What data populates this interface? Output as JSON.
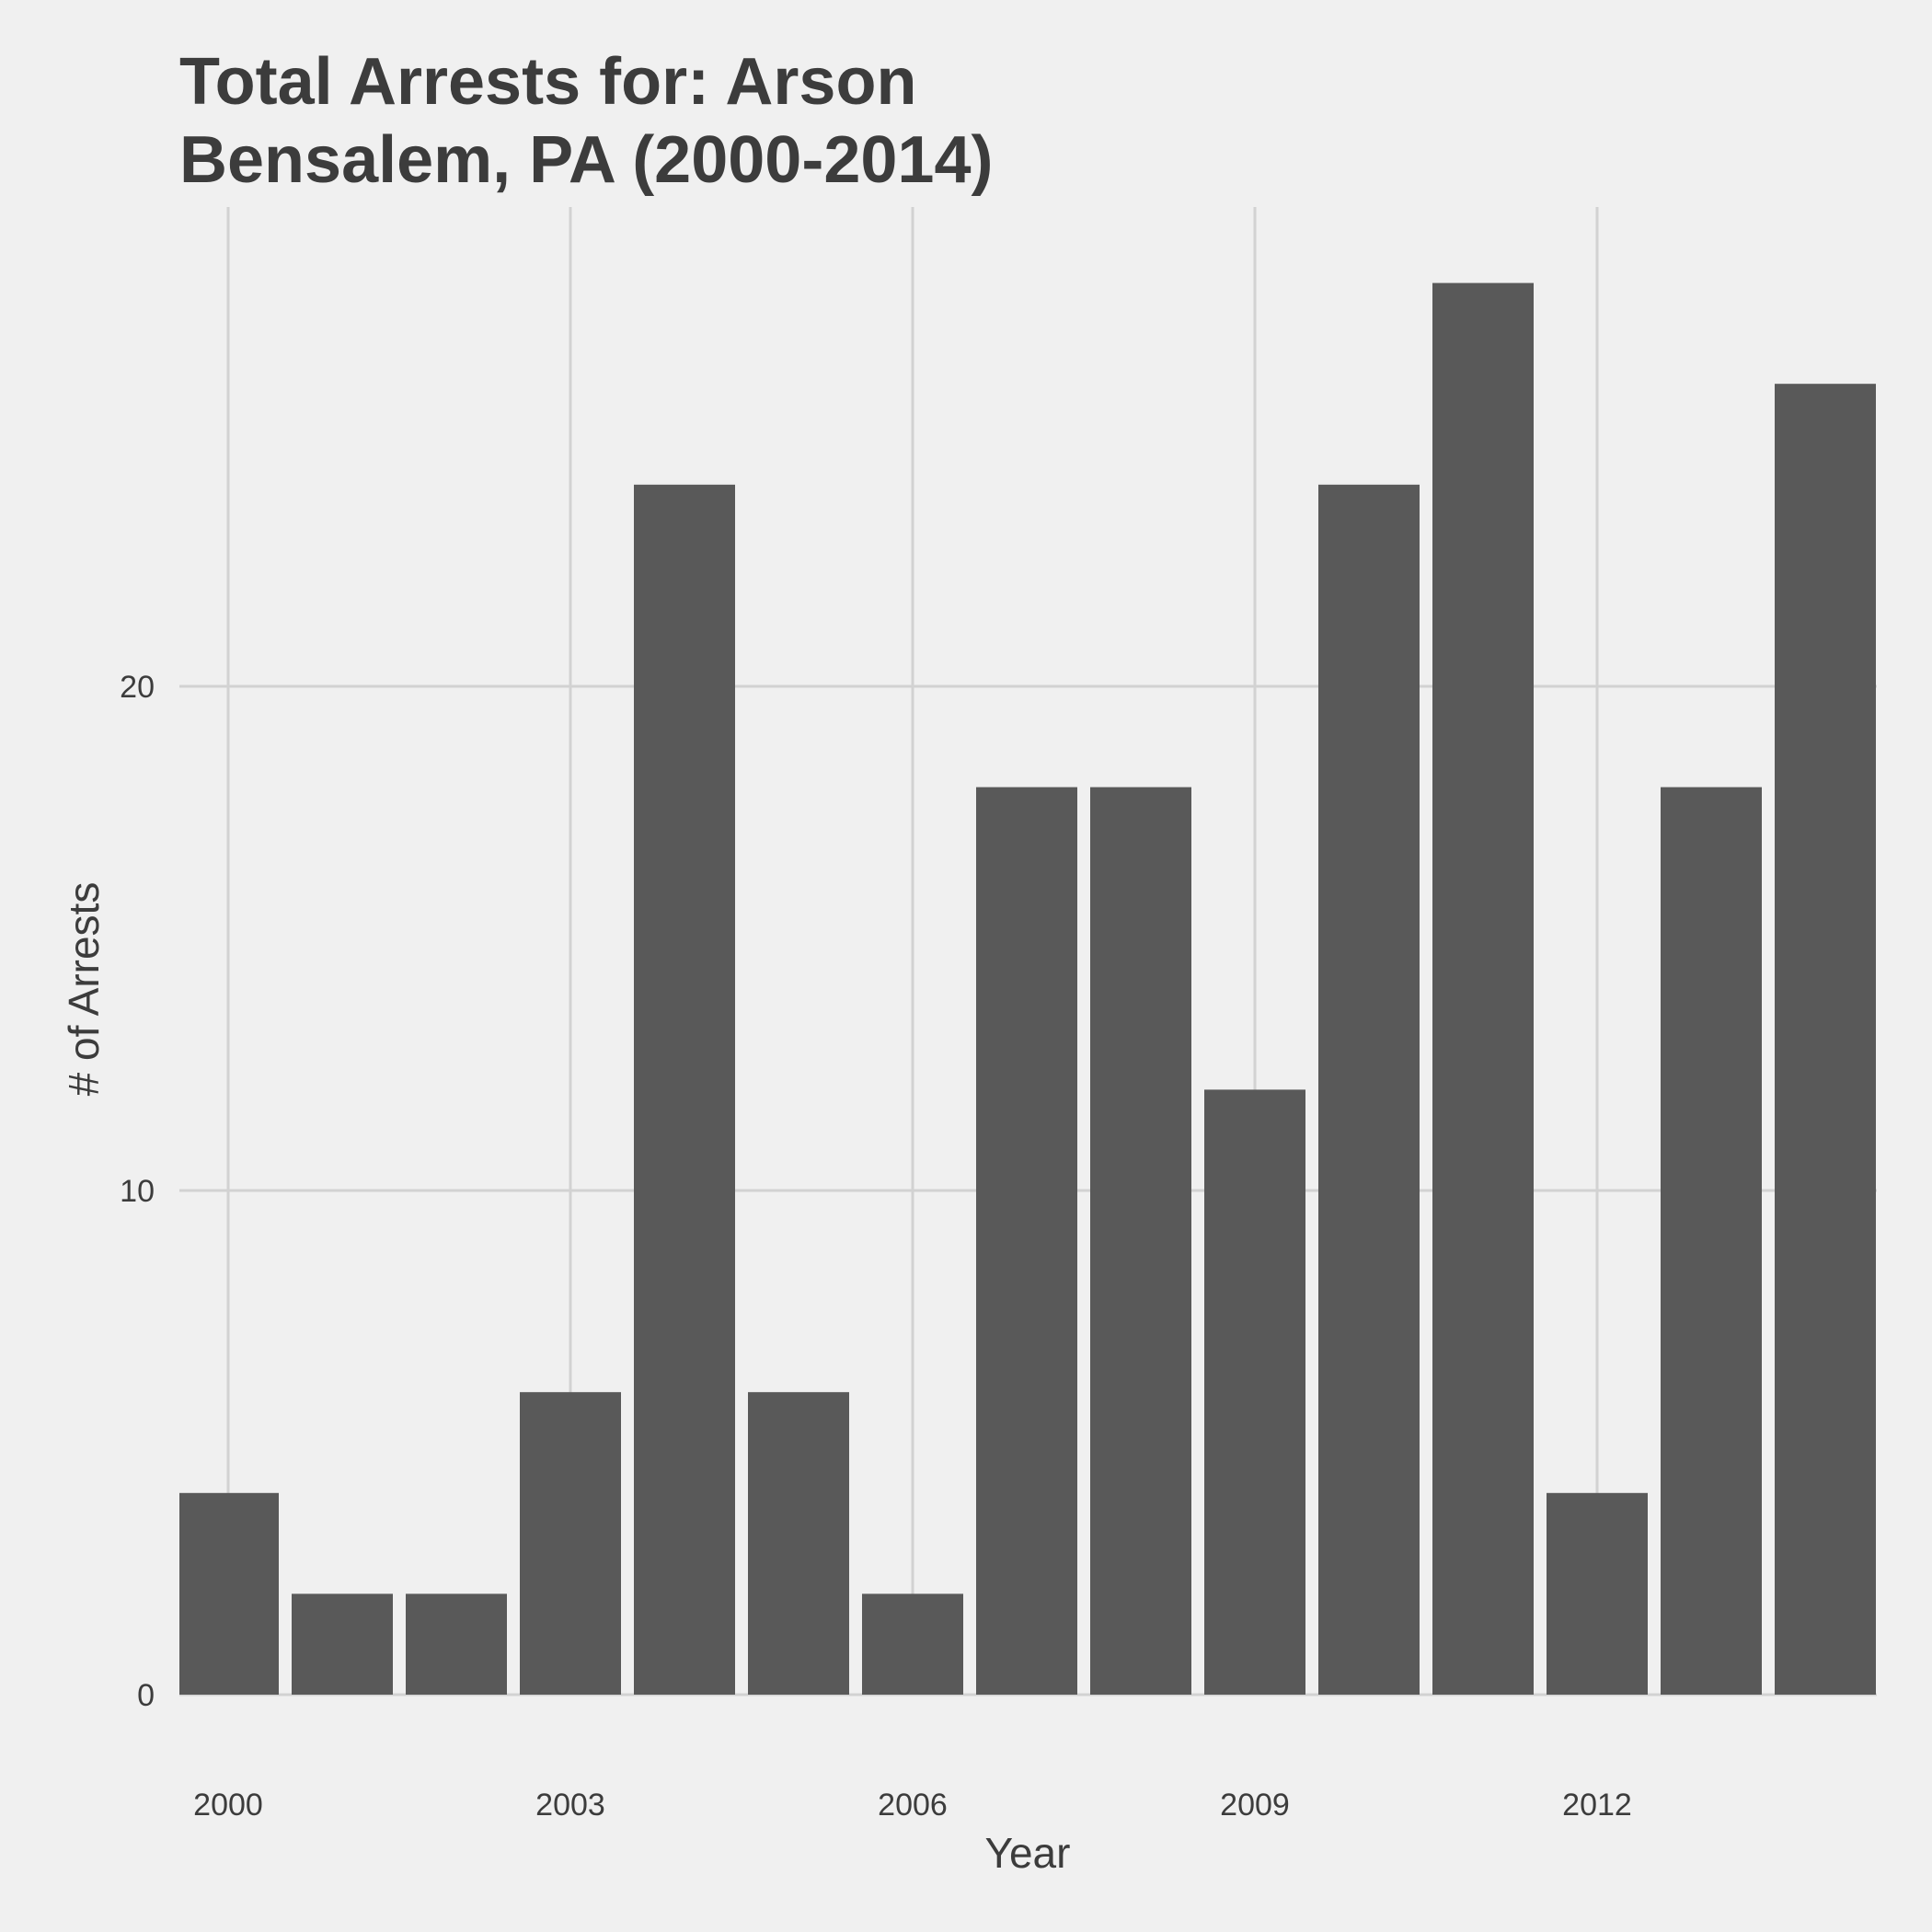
{
  "chart_data": {
    "type": "bar",
    "title": [
      "Total Arrests for: Arson",
      "Bensalem, PA (2000-2014)"
    ],
    "xlabel": "Year",
    "ylabel": "# of Arrests",
    "categories": [
      2000,
      2001,
      2002,
      2003,
      2004,
      2005,
      2006,
      2007,
      2008,
      2009,
      2010,
      2011,
      2012,
      2013,
      2014
    ],
    "values": [
      4,
      2,
      2,
      6,
      24,
      6,
      2,
      18,
      18,
      12,
      24,
      28,
      4,
      18,
      26
    ],
    "x_ticks": [
      "2000",
      "2003",
      "2006",
      "2009",
      "2012"
    ],
    "y_ticks": [
      "0",
      "10",
      "20"
    ],
    "ylim": [
      0,
      29
    ],
    "grid": true,
    "legend": "none",
    "colors": {
      "bar": "#595959",
      "grid": "#d2d2d2",
      "background": "#f0f0f0",
      "text": "#3c3c3c"
    }
  }
}
